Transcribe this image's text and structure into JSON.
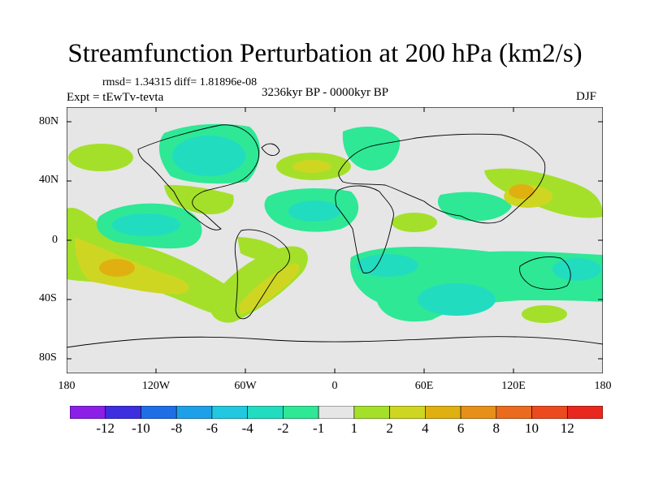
{
  "title": "Streamfunction Perturbation at 200 hPa (km2/s)",
  "stats": "rmsd= 1.34315  diff= 1.81896e-08",
  "experiment": "Expt = tEwTv-tevta",
  "period": "3236kyr BP - 0000kyr BP",
  "season": "DJF",
  "y_ticks": [
    "80N",
    "40N",
    "0",
    "40S",
    "80S"
  ],
  "x_ticks": [
    "180",
    "120W",
    "60W",
    "0",
    "60E",
    "120E",
    "180"
  ],
  "colorbar": {
    "labels": [
      "-12",
      "-10",
      "-8",
      "-6",
      "-4",
      "-2",
      "-1",
      "1",
      "2",
      "4",
      "6",
      "8",
      "10",
      "12"
    ],
    "colors": [
      "#8b1fe8",
      "#3d2ee0",
      "#1e6fe6",
      "#1ea0e8",
      "#22c8e0",
      "#22dcc0",
      "#2ee896",
      "#e6e6e6",
      "#a4e02a",
      "#cfd622",
      "#e0b010",
      "#e6901a",
      "#ea6a1e",
      "#ec4a1e",
      "#e8281e"
    ]
  },
  "colors": {
    "neutral": "#e6e6e6",
    "coast": "#000000"
  }
}
